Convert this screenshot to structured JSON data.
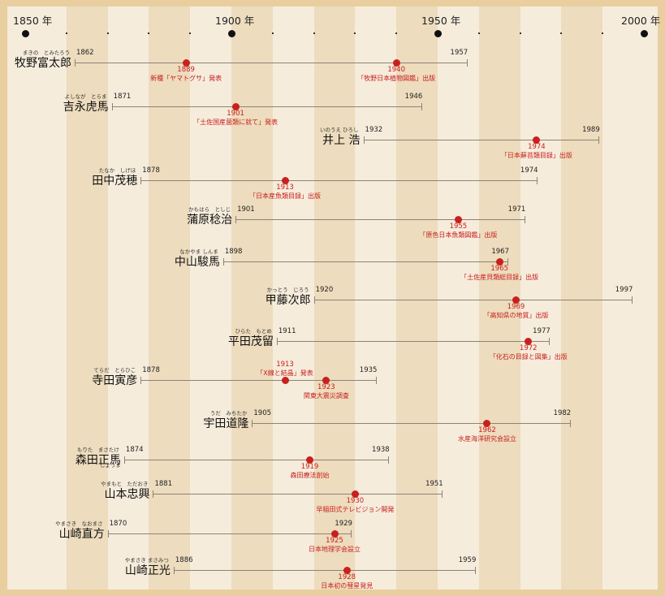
{
  "axis": {
    "labels": [
      "1850 年",
      "1900 年",
      "1950 年",
      "2000 年"
    ],
    "major_years": [
      1850,
      1900,
      1950,
      2000
    ],
    "minor_years": [
      1860,
      1870,
      1880,
      1890,
      1910,
      1920,
      1930,
      1940,
      1960,
      1970,
      1980,
      1990
    ]
  },
  "colors": {
    "background": "#f6ecdc",
    "stripe": "#eddcbd",
    "frame": "#e9cf9f",
    "event": "#c8201e",
    "lifeline": "#8c8377"
  },
  "people": [
    {
      "name": "牧野富太郎",
      "ruby": "まきの　とみたろう",
      "born": 1862,
      "died": 1957,
      "events": [
        {
          "year": 1889,
          "text": "新種「ヤマトグサ」発表"
        },
        {
          "year": 1940,
          "text": "「牧野日本植物図鑑」出版"
        }
      ]
    },
    {
      "name": "吉永虎馬",
      "ruby": "よしなが　とらま",
      "born": 1871,
      "died": 1946,
      "events": [
        {
          "year": 1901,
          "text": "「土佐国産菌類に就て」発表"
        }
      ]
    },
    {
      "name": "井上 浩",
      "ruby": "いのうえ ひろし",
      "born": 1932,
      "died": 1989,
      "events": [
        {
          "year": 1974,
          "text": "「日本蘚苔類目録」出版"
        }
      ]
    },
    {
      "name": "田中茂穂",
      "ruby": "たなか　しげほ",
      "born": 1878,
      "died": 1974,
      "events": [
        {
          "year": 1913,
          "text": "「日本産魚類目録」出版"
        }
      ]
    },
    {
      "name": "蒲原稔治",
      "ruby": "かもはら　としじ",
      "born": 1901,
      "died": 1971,
      "events": [
        {
          "year": 1955,
          "text": "「原色日本魚類図鑑」出版"
        }
      ]
    },
    {
      "name": "中山駿馬",
      "ruby": "なかやま しんま",
      "born": 1898,
      "died": 1967,
      "events": [
        {
          "year": 1965,
          "text": "「土佐産貝類総目録」出版"
        }
      ]
    },
    {
      "name": "甲藤次郎",
      "ruby": "かっとう　じろう",
      "born": 1920,
      "died": 1997,
      "events": [
        {
          "year": 1969,
          "text": "「高知県の地質」出版"
        }
      ]
    },
    {
      "name": "平田茂留",
      "ruby": "ひらた　もとめ",
      "born": 1911,
      "died": 1977,
      "events": [
        {
          "year": 1972,
          "text": "「化石の目録と図集」出版"
        }
      ]
    },
    {
      "name": "寺田寅彦",
      "ruby": "てらだ　とらひこ",
      "born": 1878,
      "died": 1935,
      "events": [
        {
          "year": 1913,
          "text": "「X線と結晶」発表"
        },
        {
          "year": 1923,
          "text": "関東大震災調査"
        }
      ]
    },
    {
      "name": "宇田道隆",
      "ruby": "うだ　みちたか",
      "born": 1905,
      "died": 1982,
      "events": [
        {
          "year": 1962,
          "text": "水産海洋研究会設立"
        }
      ]
    },
    {
      "name": "森田正馬",
      "ruby": "もりた　まさたけ",
      "ruby_below": "しょうま",
      "born": 1874,
      "died": 1938,
      "events": [
        {
          "year": 1919,
          "text": "森田療法創始"
        }
      ]
    },
    {
      "name": "山本忠興",
      "ruby": "やまもと　ただおき",
      "born": 1881,
      "died": 1951,
      "events": [
        {
          "year": 1930,
          "text": "早稲田式テレビジョン開発"
        }
      ]
    },
    {
      "name": "山崎直方",
      "ruby": "やまさき　なおまさ",
      "born": 1870,
      "died": 1929,
      "events": [
        {
          "year": 1925,
          "text": "日本地理学会設立"
        }
      ]
    },
    {
      "name": "山崎正光",
      "ruby": "やまさき まさみつ",
      "born": 1886,
      "died": 1959,
      "events": [
        {
          "year": 1928,
          "text": "日本初の彗星発見"
        }
      ]
    }
  ]
}
